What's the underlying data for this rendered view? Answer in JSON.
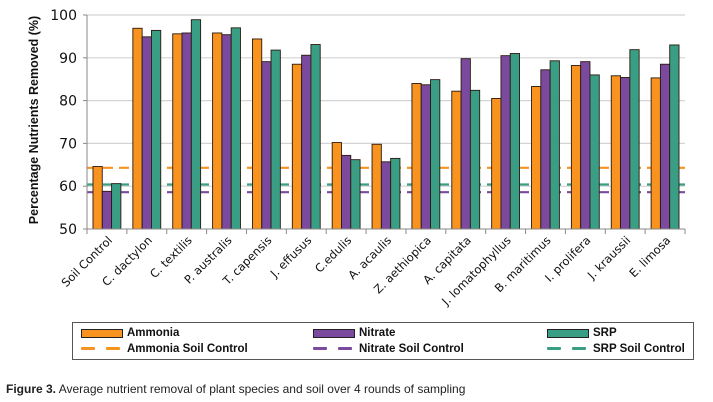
{
  "chart_data": {
    "type": "bar",
    "title": "",
    "xlabel": "",
    "ylabel": "Percentage Nutrients Removed (%)",
    "ylim": [
      50,
      100
    ],
    "yticks": [
      50,
      60,
      70,
      80,
      90,
      100
    ],
    "grid": true,
    "legend_position": "bottom",
    "categories": [
      "Soil Control",
      "C. dactylon",
      "C. textilis",
      "P. australis",
      "T. capensis",
      "J. effusus",
      "C.edulis",
      "A. acaulis",
      "Z. aethiopica",
      "A. capitata",
      "J. lomatophyllus",
      "B. maritimus",
      "I. prolifera",
      "J. kraussii",
      "E. limosa"
    ],
    "series": [
      {
        "name": "Ammonia",
        "color": "#F7931E",
        "values": [
          64.6,
          96.9,
          95.6,
          95.8,
          94.4,
          88.5,
          70.2,
          69.8,
          84.0,
          82.2,
          80.5,
          83.3,
          88.2,
          85.8,
          85.3
        ]
      },
      {
        "name": "Nitrate",
        "color": "#7B4A9E",
        "values": [
          58.8,
          94.9,
          95.8,
          95.4,
          89.1,
          90.6,
          67.2,
          65.7,
          83.7,
          89.8,
          90.5,
          87.2,
          89.1,
          85.4,
          88.5
        ]
      },
      {
        "name": "SRP",
        "color": "#3A9E84",
        "values": [
          60.6,
          96.4,
          98.9,
          97.0,
          91.8,
          93.1,
          66.2,
          66.5,
          84.9,
          82.4,
          91.0,
          89.3,
          86.0,
          91.9,
          93.0
        ]
      }
    ],
    "reference_lines": [
      {
        "name": "Ammonia Soil Control",
        "color": "#F7931E",
        "value": 64.3,
        "style": "dashed"
      },
      {
        "name": "Nitrate Soil Control",
        "color": "#7B4A9E",
        "value": 58.6,
        "style": "dashed"
      },
      {
        "name": "SRP Soil Control",
        "color": "#3A9E84",
        "value": 60.4,
        "style": "dashed"
      }
    ]
  },
  "legend": {
    "items": [
      {
        "label": "Ammonia",
        "kind": "box",
        "color": "#F7931E"
      },
      {
        "label": "Nitrate",
        "kind": "box",
        "color": "#7B4A9E"
      },
      {
        "label": "SRP",
        "kind": "box",
        "color": "#3A9E84"
      },
      {
        "label": "Ammonia Soil Control",
        "kind": "dash",
        "color": "#F7931E"
      },
      {
        "label": "Nitrate Soil Control",
        "kind": "dash",
        "color": "#7B4A9E"
      },
      {
        "label": "SRP Soil Control",
        "kind": "dash",
        "color": "#3A9E84"
      }
    ]
  },
  "caption": {
    "label": "Figure 3.",
    "text": " Average nutrient removal of plant species and soil over 4 rounds of sampling"
  }
}
